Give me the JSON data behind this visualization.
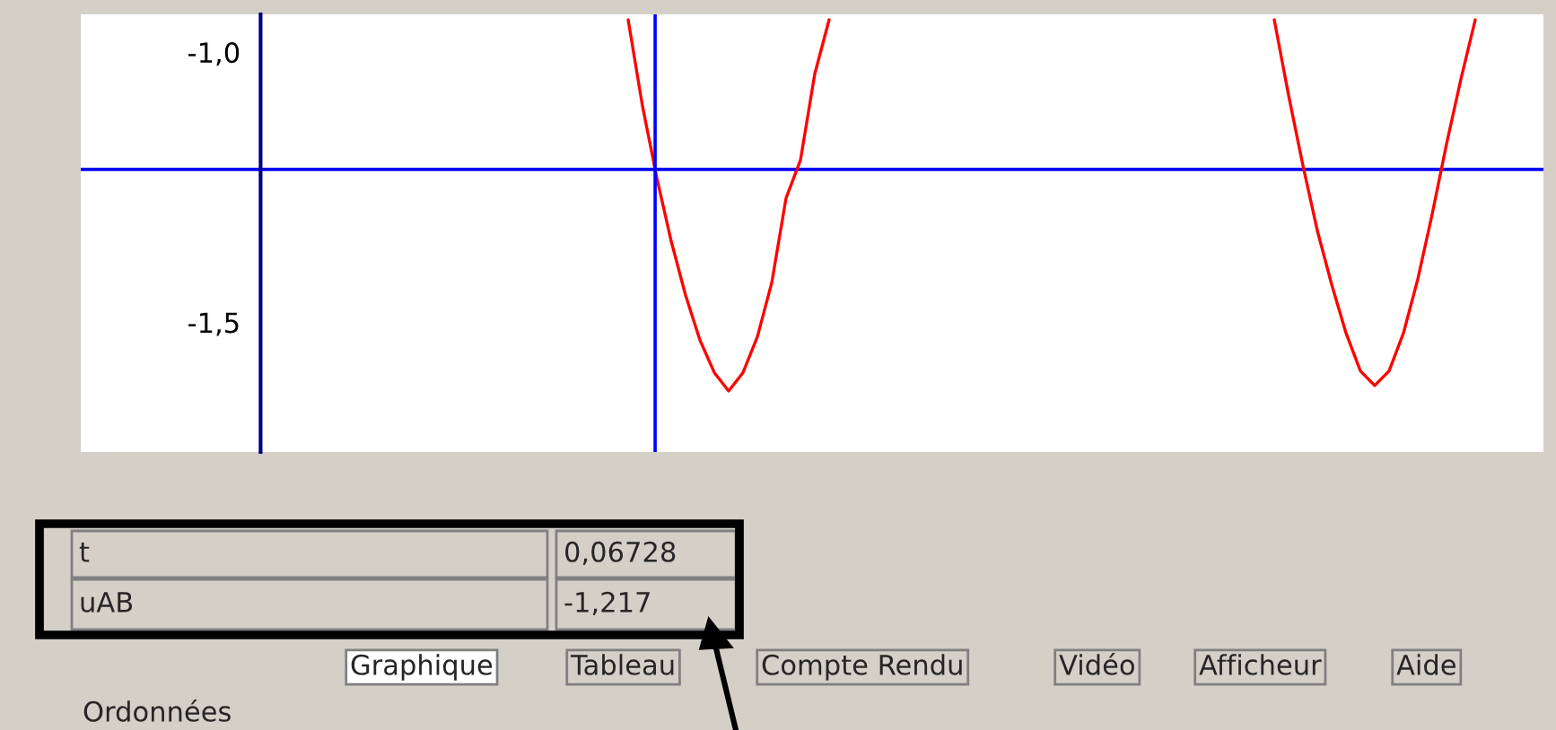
{
  "chart_data": {
    "type": "line",
    "categories": [
      null,
      null,
      null,
      null,
      null,
      null,
      null,
      null,
      null,
      null,
      null,
      null,
      null,
      null,
      null,
      null,
      null,
      null,
      null,
      null,
      null,
      null,
      null,
      null,
      null,
      null,
      null,
      null,
      null,
      null,
      null,
      null,
      null,
      null,
      null,
      null,
      null,
      null,
      null,
      null,
      null,
      null,
      null,
      null,
      null,
      null,
      null,
      null,
      null,
      null,
      null,
      null,
      null,
      null,
      null,
      null,
      null,
      null,
      null,
      null,
      null,
      null,
      null,
      null,
      null,
      null,
      null,
      null,
      null,
      null,
      null,
      null,
      null,
      null,
      null,
      null,
      null,
      null,
      null,
      null,
      null,
      null,
      null,
      null,
      null,
      null,
      null,
      null,
      null,
      null,
      null,
      null,
      null,
      null,
      null,
      null,
      null,
      null,
      null,
      null,
      null,
      null
    ],
    "series": [
      {
        "color": "#ff0000",
        "values": [
          null,
          null,
          null,
          null,
          null,
          null,
          null,
          null,
          null,
          null,
          null,
          null,
          null,
          null,
          null,
          null,
          null,
          null,
          null,
          null,
          null,
          null,
          null,
          null,
          null,
          null,
          null,
          null,
          null,
          null,
          null,
          null,
          null,
          null,
          null,
          null,
          null,
          null,
          -0.94,
          -1.1,
          -1.233,
          -1.35,
          -1.45,
          -1.533,
          -1.593,
          -1.627,
          -1.593,
          -1.527,
          -1.427,
          -1.27,
          -1.2,
          -1.04,
          -0.94,
          null,
          null,
          null,
          null,
          null,
          null,
          null,
          null,
          null,
          null,
          null,
          null,
          null,
          null,
          null,
          null,
          null,
          null,
          null,
          null,
          null,
          null,
          null,
          null,
          null,
          null,
          null,
          null,
          null,
          null,
          -0.94,
          -1.08,
          -1.21,
          -1.33,
          -1.43,
          -1.52,
          -1.59,
          -1.617,
          -1.59,
          -1.52,
          -1.42,
          -1.3,
          -1.17,
          -1.05,
          -0.94,
          null,
          null,
          null,
          null
        ]
      }
    ],
    "ylim": [
      -1.74,
      -0.93
    ],
    "yticks": [
      {
        "value": -1.0,
        "label": "-1,0"
      },
      {
        "value": -1.5,
        "label": "-1,5"
      }
    ],
    "tick_labels": "y",
    "grid": false,
    "legend": false,
    "ref_lines": [
      {
        "axis": "y",
        "value": -1.217,
        "color": "#0000ff"
      }
    ],
    "annotations": [
      "t",
      "0,06728",
      "uAB",
      "-1,217",
      "Graphique",
      "Tableau",
      "Compte Rendu",
      "Vidéo",
      "Afficheur",
      "Aide",
      "Ordonnées"
    ]
  }
}
